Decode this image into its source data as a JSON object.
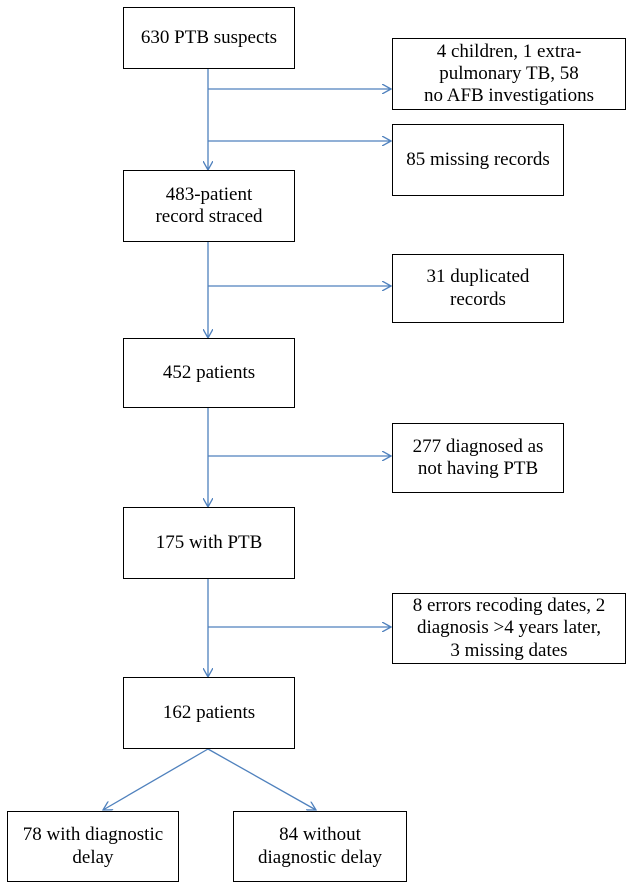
{
  "flowchart": {
    "line_color": "#4f81bd",
    "main": {
      "suspects": "630 PTB suspects",
      "traced": "483-patient\nrecord straced",
      "patients_452": "452 patients",
      "with_ptb": "175 with PTB",
      "patients_162": "162 patients"
    },
    "exclusions": {
      "children_extrapulmonary": "4 children, 1 extra-\npulmonary TB, 58\nno AFB investigations",
      "missing_records": "85 missing records",
      "duplicated": "31 duplicated\nrecords",
      "not_ptb": "277 diagnosed  as\nnot having PTB",
      "errors": "8 errors recoding dates, 2\ndiagnosis >4 years later,\n3 missing dates"
    },
    "outcomes": {
      "with_delay": "78 with diagnostic\ndelay",
      "without_delay": "84 without\ndiagnostic delay"
    }
  }
}
